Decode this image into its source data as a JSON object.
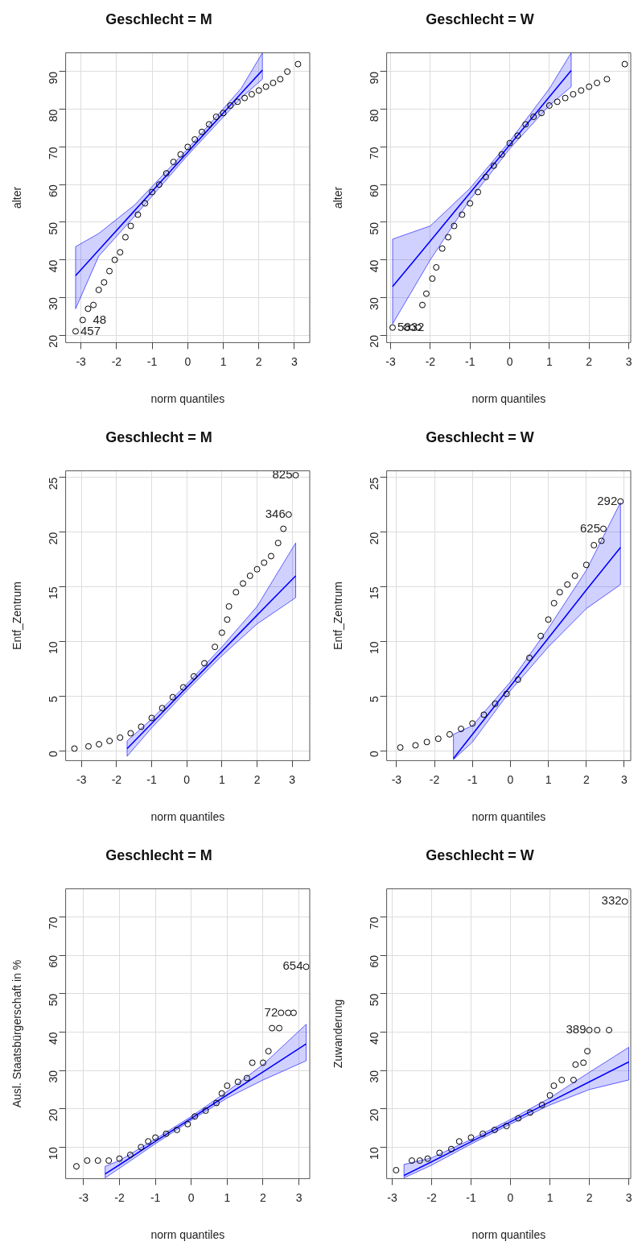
{
  "chart_data": [
    {
      "type": "scatter",
      "title": "Geschlecht = M",
      "xlabel": "norm quantiles",
      "ylabel": "alter",
      "xlim": [
        -3.43,
        3.43
      ],
      "ylim": [
        18,
        95
      ],
      "xticks": [
        -3,
        -2,
        -1,
        0,
        1,
        2,
        3
      ],
      "yticks": [
        20,
        30,
        40,
        50,
        60,
        70,
        80,
        90
      ],
      "grid": true,
      "marker": "circle",
      "series": [
        {
          "color": "#000000",
          "x": [
            -3.15,
            -2.95,
            -2.8,
            -2.65,
            -2.5,
            -2.35,
            -2.2,
            -2.05,
            -1.9,
            -1.75,
            -1.6,
            -1.4,
            -1.2,
            -1,
            -0.8,
            -0.6,
            -0.4,
            -0.2,
            0,
            0.2,
            0.4,
            0.6,
            0.8,
            1,
            1.2,
            1.4,
            1.6,
            1.8,
            2,
            2.2,
            2.4,
            2.6,
            2.8,
            3.1
          ],
          "values": [
            21,
            24,
            27,
            28,
            32,
            34,
            37,
            40,
            42,
            46,
            49,
            52,
            55,
            58,
            60,
            63,
            66,
            68,
            70,
            72,
            74,
            76,
            78,
            79,
            81,
            82,
            83,
            84,
            85,
            86,
            87,
            88,
            90,
            92
          ]
        },
        {
          "type": "line",
          "color": "#0000ff",
          "marker": "none",
          "x": [
            -3.15,
            -2.5,
            -1.5,
            0,
            1.5,
            2.1
          ],
          "values": [
            35.8,
            42.6,
            53,
            68.6,
            84.2,
            90.4
          ],
          "lower": [
            27,
            41,
            51.5,
            67.8,
            83,
            88
          ],
          "upper": [
            43.5,
            47,
            54.5,
            69.5,
            85.5,
            95
          ]
        }
      ],
      "annotations": [
        {
          "text": "457",
          "x": -3.15,
          "y": 21
        },
        {
          "text": "48",
          "x": -2.8,
          "y": 24
        }
      ]
    },
    {
      "type": "scatter",
      "title": "Geschlecht = W",
      "xlabel": "norm quantiles",
      "ylabel": "alter",
      "xlim": [
        -3.1,
        3.05
      ],
      "ylim": [
        18,
        95
      ],
      "xticks": [
        -3,
        -2,
        -1,
        0,
        1,
        2,
        3
      ],
      "yticks": [
        20,
        30,
        40,
        50,
        60,
        70,
        80,
        90
      ],
      "grid": true,
      "marker": "circle",
      "series": [
        {
          "color": "#000000",
          "x": [
            -2.95,
            -2.6,
            -2.45,
            -2.3,
            -2.2,
            -2.1,
            -1.95,
            -1.85,
            -1.7,
            -1.55,
            -1.4,
            -1.2,
            -1,
            -0.8,
            -0.6,
            -0.4,
            -0.2,
            0,
            0.2,
            0.4,
            0.6,
            0.8,
            1,
            1.2,
            1.4,
            1.6,
            1.8,
            2,
            2.2,
            2.45,
            2.9
          ],
          "values": [
            22,
            22,
            22,
            22,
            28,
            31,
            35,
            38,
            43,
            46,
            49,
            52,
            55,
            58,
            62,
            65,
            68,
            71,
            73,
            76,
            78,
            79,
            81,
            82,
            83,
            84,
            85,
            86,
            87,
            88,
            92
          ]
        },
        {
          "type": "line",
          "color": "#0000ff",
          "marker": "none",
          "x": [
            -2.95,
            -2,
            -1,
            0,
            1,
            1.55
          ],
          "values": [
            32.9,
            45,
            57.8,
            70.5,
            83.3,
            90.3
          ],
          "lower": [
            23,
            40,
            56,
            69.5,
            81,
            86
          ],
          "upper": [
            45.5,
            49,
            59,
            71.5,
            85.5,
            95
          ]
        }
      ],
      "annotations": [
        {
          "text": "5832",
          "x": -2.95,
          "y": 22
        }
      ]
    },
    {
      "type": "scatter",
      "title": "Geschlecht = M",
      "xlabel": "norm quantiles",
      "ylabel": "Entf_Zentrum",
      "xlim": [
        -3.45,
        3.5
      ],
      "ylim": [
        -0.9,
        25.6
      ],
      "xticks": [
        -3,
        -2,
        -1,
        0,
        1,
        2,
        3
      ],
      "yticks": [
        0,
        5,
        10,
        15,
        20,
        25
      ],
      "grid": true,
      "marker": "circle",
      "series": [
        {
          "color": "#000000",
          "x": [
            -3.2,
            -2.8,
            -2.5,
            -2.2,
            -1.9,
            -1.6,
            -1.3,
            -1,
            -0.7,
            -0.4,
            -0.1,
            0.2,
            0.5,
            0.8,
            1,
            1.15,
            1.2,
            1.4,
            1.6,
            1.8,
            2,
            2.2,
            2.4,
            2.6,
            2.75,
            2.9,
            3.1
          ],
          "values": [
            0.2,
            0.4,
            0.6,
            0.9,
            1.2,
            1.6,
            2.2,
            3,
            3.9,
            4.9,
            5.8,
            6.8,
            8,
            9.5,
            10.8,
            12,
            13.2,
            14.5,
            15.3,
            16,
            16.6,
            17.2,
            17.8,
            19,
            20.3,
            21.6,
            25.2
          ]
        },
        {
          "type": "line",
          "color": "#0000ff",
          "marker": "none",
          "x": [
            -1.7,
            -1,
            0,
            1,
            2,
            3.1
          ],
          "values": [
            0.2,
            2.5,
            5.8,
            9.1,
            12.4,
            16
          ],
          "lower": [
            -0.5,
            2.1,
            5.5,
            8.7,
            11.6,
            14
          ],
          "upper": [
            0.9,
            2.9,
            6.1,
            9.5,
            13.2,
            19
          ]
        }
      ],
      "annotations": [
        {
          "text": "346",
          "x": 2.9,
          "y": 21.6
        },
        {
          "text": "825",
          "x": 3.1,
          "y": 25.2
        }
      ]
    },
    {
      "type": "scatter",
      "title": "Geschlecht = W",
      "xlabel": "norm quantiles",
      "ylabel": "Entf_Zentrum",
      "xlim": [
        -3.26,
        3.17
      ],
      "ylim": [
        -0.9,
        25.6
      ],
      "xticks": [
        -3,
        -2,
        -1,
        0,
        1,
        2,
        3
      ],
      "yticks": [
        0,
        5,
        10,
        15,
        20,
        25
      ],
      "grid": true,
      "marker": "circle",
      "series": [
        {
          "color": "#000000",
          "x": [
            -2.9,
            -2.5,
            -2.2,
            -1.9,
            -1.6,
            -1.3,
            -1,
            -0.7,
            -0.4,
            -0.1,
            0.2,
            0.5,
            0.8,
            1,
            1.15,
            1.3,
            1.5,
            1.7,
            2,
            2.2,
            2.4,
            2.45,
            2.9
          ],
          "values": [
            0.3,
            0.5,
            0.8,
            1.1,
            1.5,
            2,
            2.5,
            3.3,
            4.3,
            5.2,
            6.5,
            8.5,
            10.5,
            12,
            13.5,
            14.5,
            15.2,
            16,
            17,
            18.8,
            19.2,
            20.3,
            22.8
          ]
        },
        {
          "type": "line",
          "color": "#0000ff",
          "marker": "none",
          "x": [
            -1.5,
            -1,
            0,
            1,
            2,
            2.9
          ],
          "values": [
            -0.7,
            1.5,
            5.9,
            10.3,
            14.7,
            18.6
          ],
          "lower": [
            -0.8,
            0.8,
            5.5,
            9.5,
            13,
            15.2
          ],
          "upper": [
            1.5,
            2.3,
            6.3,
            11.2,
            16.5,
            22.7
          ]
        }
      ],
      "annotations": [
        {
          "text": "625",
          "x": 2.45,
          "y": 20.3
        },
        {
          "text": "292",
          "x": 2.9,
          "y": 22.8
        }
      ]
    },
    {
      "type": "scatter",
      "title": "Geschlecht = M",
      "xlabel": "norm quantiles",
      "ylabel": "Ausl. Staatsbürgerschaft in %",
      "xlim": [
        -3.5,
        3.3
      ],
      "ylim": [
        1.8,
        77.3
      ],
      "xticks": [
        -3,
        -2,
        -1,
        0,
        1,
        2,
        3
      ],
      "yticks": [
        10,
        20,
        30,
        40,
        50,
        60,
        70
      ],
      "grid": true,
      "marker": "circle",
      "series": [
        {
          "color": "#000000",
          "x": [
            -3.2,
            -2.9,
            -2.6,
            -2.3,
            -2,
            -1.7,
            -1.4,
            -1.2,
            -1,
            -0.7,
            -0.4,
            -0.1,
            0.1,
            0.4,
            0.7,
            0.85,
            1,
            1.3,
            1.55,
            1.7,
            2,
            2.15,
            2.25,
            2.45,
            2.5,
            2.7,
            2.85,
            3.2
          ],
          "values": [
            5,
            6.5,
            6.5,
            6.5,
            7,
            8,
            10,
            11.5,
            12.5,
            13.5,
            14.5,
            16,
            18,
            19.5,
            21.5,
            24,
            26,
            27,
            28,
            32,
            32,
            35,
            41,
            41,
            45,
            45,
            45,
            57
          ]
        },
        {
          "type": "line",
          "color": "#0000ff",
          "marker": "none",
          "x": [
            -2.4,
            -2,
            -1,
            0,
            1,
            2,
            3.2
          ],
          "values": [
            3,
            5.4,
            11.5,
            17.5,
            23.6,
            29.6,
            36.9
          ],
          "lower": [
            2,
            4.5,
            10.9,
            17,
            22.8,
            27.5,
            32.5
          ],
          "upper": [
            5,
            6.5,
            12.1,
            18,
            24.5,
            31.5,
            42
          ]
        }
      ],
      "annotations": [
        {
          "text": "72",
          "x": 2.5,
          "y": 45
        },
        {
          "text": "654",
          "x": 3.2,
          "y": 57
        }
      ]
    },
    {
      "type": "scatter",
      "title": "Geschlecht = W",
      "xlabel": "norm quantiles",
      "ylabel": "Zuwanderung",
      "xlim": [
        -3.14,
        3.05
      ],
      "ylim": [
        1.8,
        77.3
      ],
      "xticks": [
        -3,
        -2,
        -1,
        0,
        1,
        2,
        3
      ],
      "yticks": [
        10,
        20,
        30,
        40,
        50,
        60,
        70
      ],
      "grid": true,
      "marker": "circle",
      "series": [
        {
          "color": "#000000",
          "x": [
            -2.9,
            -2.5,
            -2.3,
            -2.1,
            -1.8,
            -1.5,
            -1.3,
            -1,
            -0.7,
            -0.4,
            -0.1,
            0.2,
            0.5,
            0.8,
            1,
            1.1,
            1.3,
            1.6,
            1.65,
            1.85,
            1.95,
            2,
            2.2,
            2.5,
            2.9
          ],
          "values": [
            4,
            6.5,
            6.5,
            7,
            8.5,
            9.5,
            11.5,
            12.5,
            13.5,
            14.5,
            15.5,
            17.5,
            19,
            21,
            23.5,
            26,
            27.5,
            27.5,
            31.5,
            32,
            35,
            40.5,
            40.5,
            40.5,
            74
          ]
        },
        {
          "type": "line",
          "color": "#0000ff",
          "marker": "none",
          "x": [
            -2.7,
            -2,
            -1,
            0,
            1,
            2,
            3
          ],
          "values": [
            2.6,
            6.2,
            11.4,
            16.6,
            21.8,
            27,
            32.2
          ],
          "lower": [
            2,
            5.3,
            10.8,
            16,
            21,
            25,
            27.5
          ],
          "upper": [
            5.5,
            7.2,
            12,
            17.2,
            22.8,
            29.5,
            36
          ]
        }
      ],
      "annotations": [
        {
          "text": "389",
          "x": 2,
          "y": 40.5
        },
        {
          "text": "332",
          "x": 2.9,
          "y": 74
        }
      ]
    }
  ]
}
